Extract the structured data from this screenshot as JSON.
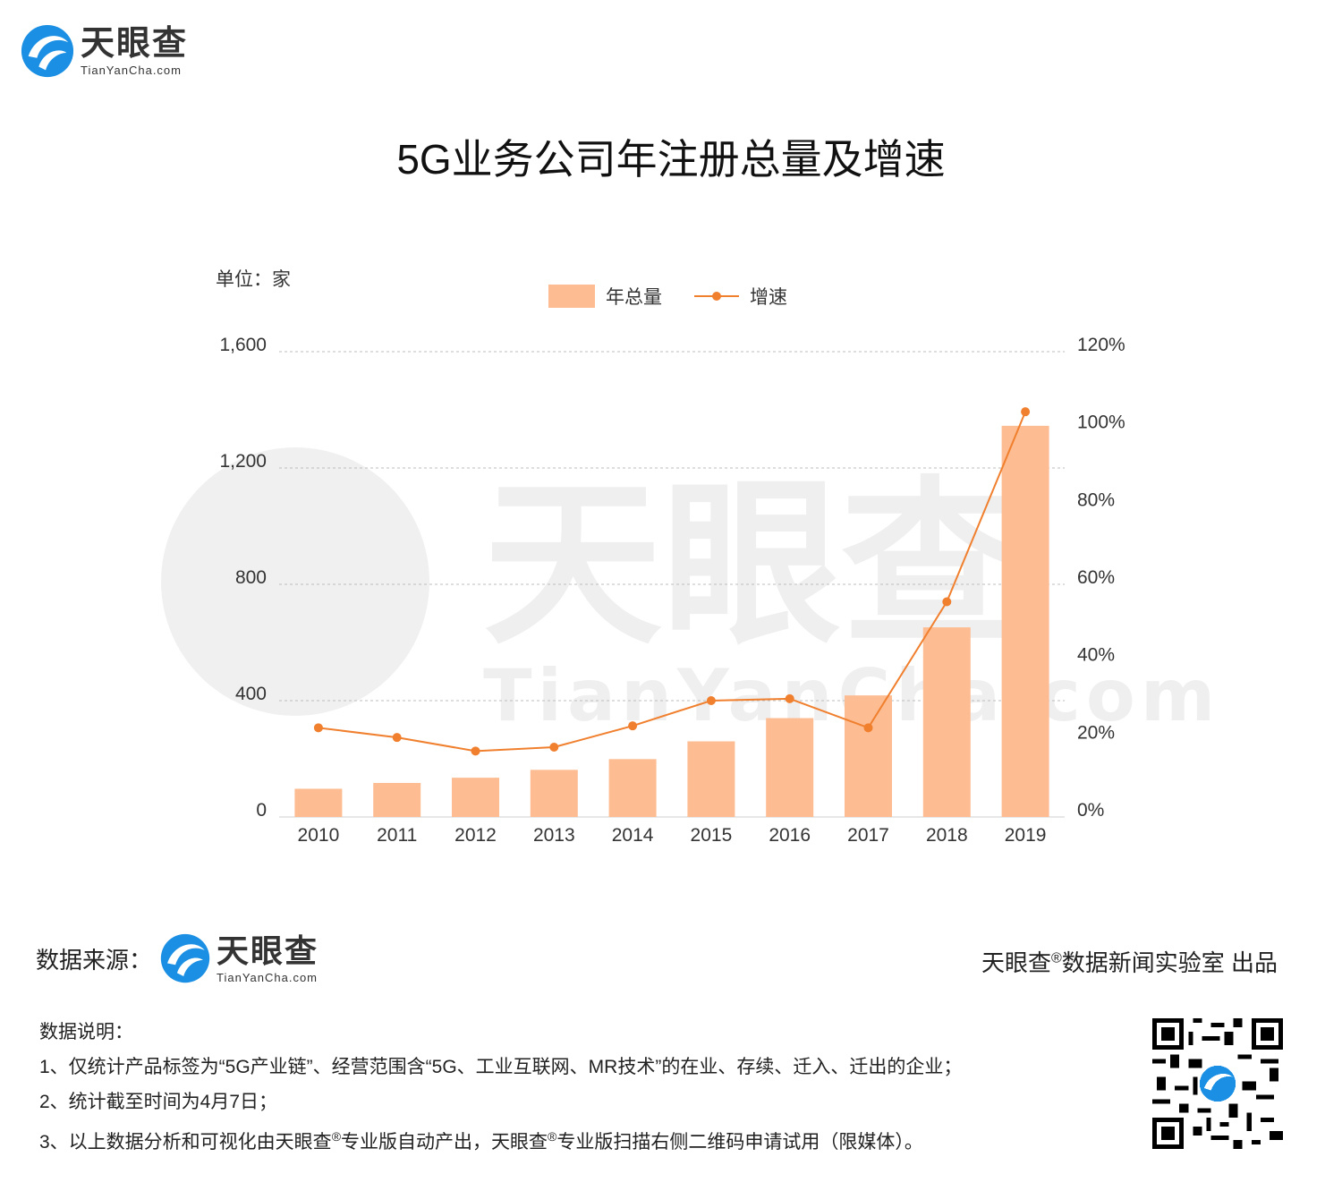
{
  "brand": {
    "name": "天眼查",
    "url": "TianYanCha.com"
  },
  "title": "5G业务公司年注册总量及增速",
  "unit_label": "单位：家",
  "legend": {
    "bar_label": "年总量",
    "line_label": "增速"
  },
  "colors": {
    "bar": "#fdbc92",
    "line": "#f07f2e",
    "grid": "#bdbdbd",
    "logo_blue": "#1a8fe3"
  },
  "chart_data": {
    "type": "bar",
    "categories": [
      "2010",
      "2011",
      "2012",
      "2013",
      "2014",
      "2015",
      "2016",
      "2017",
      "2018",
      "2019"
    ],
    "series": [
      {
        "name": "年总量",
        "type": "bar",
        "axis": "left",
        "values": [
          97,
          117,
          135,
          162,
          199,
          260,
          340,
          418,
          652,
          1345
        ]
      },
      {
        "name": "增速",
        "type": "line",
        "axis": "right",
        "values": [
          0.23,
          0.205,
          0.17,
          0.18,
          0.235,
          0.3,
          0.305,
          0.23,
          0.555,
          1.045
        ]
      }
    ],
    "y_left": {
      "ylim": [
        0,
        1600
      ],
      "ticks": [
        "0",
        "400",
        "800",
        "1,200",
        "1,600"
      ],
      "tick_values": [
        0,
        400,
        800,
        1200,
        1600
      ]
    },
    "y_right": {
      "ylim": [
        0,
        1.2
      ],
      "ticks": [
        "0%",
        "20%",
        "40%",
        "60%",
        "80%",
        "100%",
        "120%"
      ],
      "tick_values": [
        0,
        0.2,
        0.4,
        0.6,
        0.8,
        1.0,
        1.2
      ]
    },
    "grid": true,
    "legend_position": "top-center"
  },
  "footer": {
    "source_label": "数据来源：",
    "producer_prefix": "天眼查",
    "producer_mark": "®",
    "producer_suffix": "数据新闻实验室 出品",
    "notes_title": "数据说明：",
    "note1": "1、仅统计产品标签为“5G产业链”、经营范围含“5G、工业互联网、MR技术”的在业、存续、迁入、迁出的企业；",
    "note2": "2、统计截至时间为4月7日；",
    "note3_a": "3、以上数据分析和可视化由天眼查",
    "note3_mark": "®",
    "note3_b": "专业版自动产出，天眼查",
    "note3_mark2": "®",
    "note3_c": "专业版扫描右侧二维码申请试用（限媒体）。"
  }
}
